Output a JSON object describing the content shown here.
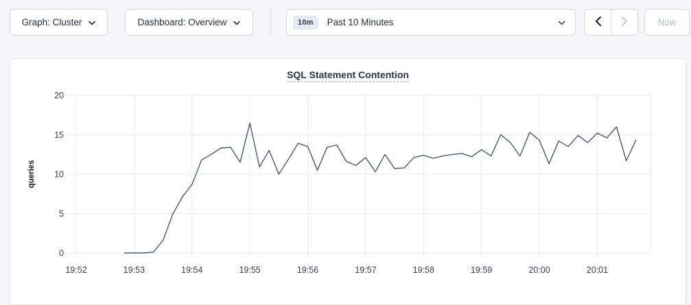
{
  "toolbar": {
    "graph_select": {
      "label": "Graph: Cluster"
    },
    "dashboard_select": {
      "label": "Dashboard: Overview"
    },
    "time_range": {
      "badge": "10m",
      "label": "Past 10 Minutes"
    },
    "now_button": "Now"
  },
  "chart_data": {
    "type": "line",
    "title": "SQL Statement Contention",
    "xlabel": "",
    "ylabel": "queries",
    "ylim": [
      0,
      20
    ],
    "yticks": [
      0,
      5,
      10,
      15,
      20
    ],
    "x_domain_min": [
      0,
      9.92
    ],
    "x_unit": "minutes after 19:52, points sampled every 10s",
    "grid": true,
    "legend": "none",
    "xticks": [
      {
        "label": "19:52",
        "offset_min": 0
      },
      {
        "label": "19:53",
        "offset_min": 1
      },
      {
        "label": "19:54",
        "offset_min": 2
      },
      {
        "label": "19:55",
        "offset_min": 3
      },
      {
        "label": "19:56",
        "offset_min": 4
      },
      {
        "label": "19:57",
        "offset_min": 5
      },
      {
        "label": "19:58",
        "offset_min": 6
      },
      {
        "label": "19:59",
        "offset_min": 7
      },
      {
        "label": "20:00",
        "offset_min": 8
      },
      {
        "label": "20:01",
        "offset_min": 9
      }
    ],
    "series": [
      {
        "name": "SQL Statement Contention",
        "color": "#475872",
        "points": [
          [
            0.833,
            0
          ],
          [
            1.0,
            0
          ],
          [
            1.167,
            0
          ],
          [
            1.333,
            0.1
          ],
          [
            1.5,
            1.6
          ],
          [
            1.667,
            4.9
          ],
          [
            1.833,
            7.1
          ],
          [
            2.0,
            8.7
          ],
          [
            2.167,
            11.8
          ],
          [
            2.333,
            12.5
          ],
          [
            2.5,
            13.3
          ],
          [
            2.667,
            13.4
          ],
          [
            2.833,
            11.5
          ],
          [
            3.0,
            16.5
          ],
          [
            3.167,
            10.9
          ],
          [
            3.333,
            13.0
          ],
          [
            3.5,
            10.0
          ],
          [
            3.667,
            11.9
          ],
          [
            3.833,
            13.9
          ],
          [
            4.0,
            13.5
          ],
          [
            4.167,
            10.5
          ],
          [
            4.333,
            13.4
          ],
          [
            4.5,
            13.7
          ],
          [
            4.667,
            11.6
          ],
          [
            4.833,
            11.1
          ],
          [
            5.0,
            12.1
          ],
          [
            5.167,
            10.3
          ],
          [
            5.333,
            12.5
          ],
          [
            5.5,
            10.7
          ],
          [
            5.667,
            10.8
          ],
          [
            5.833,
            12.1
          ],
          [
            6.0,
            12.4
          ],
          [
            6.167,
            12.0
          ],
          [
            6.333,
            12.3
          ],
          [
            6.5,
            12.5
          ],
          [
            6.667,
            12.6
          ],
          [
            6.833,
            12.2
          ],
          [
            7.0,
            13.1
          ],
          [
            7.167,
            12.3
          ],
          [
            7.333,
            15.0
          ],
          [
            7.5,
            14.0
          ],
          [
            7.667,
            12.3
          ],
          [
            7.833,
            15.3
          ],
          [
            8.0,
            14.3
          ],
          [
            8.167,
            11.3
          ],
          [
            8.333,
            14.2
          ],
          [
            8.5,
            13.5
          ],
          [
            8.667,
            14.9
          ],
          [
            8.833,
            14.0
          ],
          [
            9.0,
            15.2
          ],
          [
            9.167,
            14.6
          ],
          [
            9.333,
            16.0
          ],
          [
            9.5,
            11.7
          ],
          [
            9.667,
            14.3
          ]
        ]
      }
    ]
  }
}
